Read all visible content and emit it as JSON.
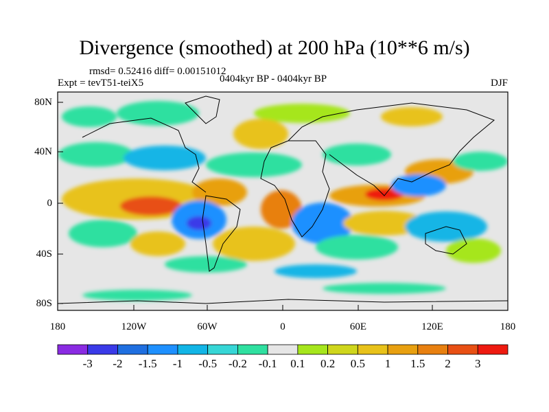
{
  "map": {
    "title": "Divergence (smoothed) at 200 hPa (10**6 m/s)",
    "stats": "rmsd= 0.52416 diff= 0.00151012",
    "experiment": "Expt = tevT51-teiX5",
    "period": "0404kyr BP - 0404kyr BP",
    "season": "DJF",
    "lat_labels": [
      "80N",
      "40N",
      "0",
      "40S",
      "80S"
    ],
    "lon_labels": [
      "180",
      "120W",
      "60W",
      "0",
      "60E",
      "120E",
      "180"
    ]
  },
  "colorbar": {
    "labels": [
      "-3",
      "-2",
      "-1.5",
      "-1",
      "-0.5",
      "-0.2",
      "-0.1",
      "0.1",
      "0.2",
      "0.5",
      "1",
      "1.5",
      "2",
      "3"
    ],
    "colors": [
      "#8a2be2",
      "#3a3ae8",
      "#1f6fe0",
      "#1e90ff",
      "#12b5e6",
      "#36d6d6",
      "#2fe0a0",
      "#e6e6e6",
      "#a6e61c",
      "#cfd61c",
      "#e8c21a",
      "#e8a010",
      "#e88010",
      "#e85014",
      "#ee1a10"
    ]
  }
}
